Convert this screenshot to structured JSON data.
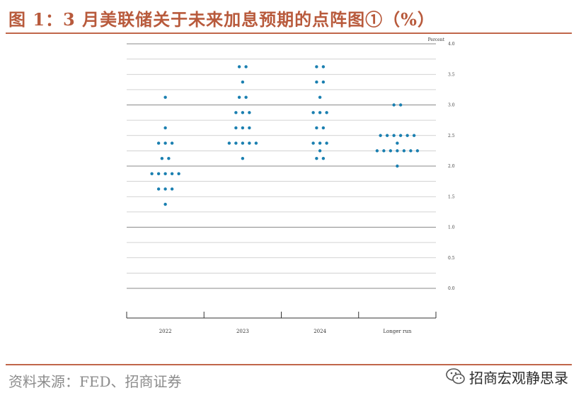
{
  "figure": {
    "title": "图 1：3 月美联储关于未来加息预期的点阵图①（%）",
    "source": "资料来源：FED、招商证券",
    "brand": "招商宏观静思录",
    "brand_icon": "wechat-icon"
  },
  "colors": {
    "accent": "#c0664a",
    "title": "#b85a3c",
    "dot": "#1a7fb0",
    "gridline": "#9a9a9a"
  },
  "chart_data": {
    "type": "scatter",
    "title": "",
    "xlabel": "",
    "ylabel": "Percent",
    "ylim": [
      0,
      4
    ],
    "ytick_labels": [
      "0.0",
      "0.5",
      "1.0",
      "1.5",
      "2.0",
      "2.5",
      "3.0",
      "3.5",
      "4.0"
    ],
    "categories": [
      "2022",
      "2023",
      "2024",
      "Longer run"
    ],
    "grid": true,
    "series": [
      {
        "category": "2022",
        "points": [
          {
            "y": 3.125,
            "count": 1
          },
          {
            "y": 2.625,
            "count": 1
          },
          {
            "y": 2.375,
            "count": 3
          },
          {
            "y": 2.125,
            "count": 2
          },
          {
            "y": 1.875,
            "count": 5
          },
          {
            "y": 1.625,
            "count": 3
          },
          {
            "y": 1.375,
            "count": 1
          }
        ]
      },
      {
        "category": "2023",
        "points": [
          {
            "y": 3.625,
            "count": 2
          },
          {
            "y": 3.375,
            "count": 1
          },
          {
            "y": 3.125,
            "count": 2
          },
          {
            "y": 2.875,
            "count": 3
          },
          {
            "y": 2.625,
            "count": 3
          },
          {
            "y": 2.375,
            "count": 5
          },
          {
            "y": 2.125,
            "count": 1
          }
        ]
      },
      {
        "category": "2024",
        "points": [
          {
            "y": 3.625,
            "count": 2
          },
          {
            "y": 3.375,
            "count": 2
          },
          {
            "y": 3.125,
            "count": 1
          },
          {
            "y": 2.875,
            "count": 3
          },
          {
            "y": 2.625,
            "count": 2
          },
          {
            "y": 2.375,
            "count": 3
          },
          {
            "y": 2.25,
            "count": 1
          },
          {
            "y": 2.125,
            "count": 2
          }
        ]
      },
      {
        "category": "Longer run",
        "points": [
          {
            "y": 3.0,
            "count": 2
          },
          {
            "y": 2.5,
            "count": 6
          },
          {
            "y": 2.375,
            "count": 1
          },
          {
            "y": 2.25,
            "count": 7
          },
          {
            "y": 2.0,
            "count": 1
          }
        ]
      }
    ]
  }
}
